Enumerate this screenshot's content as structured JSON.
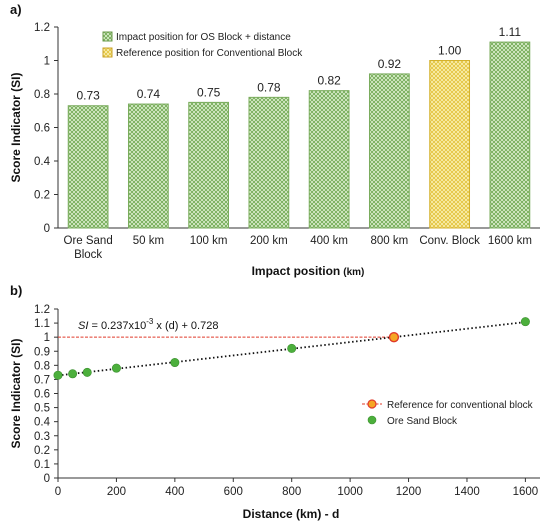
{
  "chart_data": [
    {
      "panel": "a)",
      "type": "bar",
      "categories": [
        "Ore Sand\nBlock",
        "50 km",
        "100 km",
        "200 km",
        "400 km",
        "800 km",
        "Conv. Block",
        "1600 km"
      ],
      "values": [
        0.73,
        0.74,
        0.75,
        0.78,
        0.82,
        0.92,
        1.0,
        1.11
      ],
      "value_labels": [
        "0.73",
        "0.74",
        "0.75",
        "0.78",
        "0.82",
        "0.92",
        "1.00",
        "1.11"
      ],
      "highlight_index": 6,
      "ylabel": "Score Indicator (SI)",
      "xlabel": "Impact position",
      "xlabel_unit": "(km)",
      "ylim": [
        0,
        1.2
      ],
      "yticks": [
        "0",
        "0.2",
        "0.4",
        "0.6",
        "0.8",
        "1",
        "1.2"
      ],
      "legend": [
        {
          "label": "Impact position for OS Block + distance",
          "color": "#c9e6b3",
          "stroke": "#6a9a4a"
        },
        {
          "label": "Reference position for Conventional Block",
          "color": "#f6e27a",
          "stroke": "#c9a227"
        }
      ],
      "legend_position": "top-left",
      "grid": false
    },
    {
      "panel": "b)",
      "type": "scatter",
      "series": [
        {
          "name": "Ore Sand Block",
          "x": [
            0,
            50,
            100,
            200,
            400,
            800,
            1600
          ],
          "y": [
            0.73,
            0.74,
            0.75,
            0.78,
            0.82,
            0.92,
            1.11
          ],
          "color": "#4caf3c"
        },
        {
          "name": "Reference for conventional block",
          "x": [
            1150
          ],
          "y": [
            1.0
          ],
          "color": "#f5a623",
          "stroke": "#e03a2a"
        }
      ],
      "trendline": {
        "slope": 0.000237,
        "intercept": 0.728,
        "x_range": [
          0,
          1600
        ]
      },
      "reference_line_y": 1.0,
      "equation_parts": {
        "var": "SI",
        "rest": " = 0.237x10",
        "exp": "-3",
        "tail": " x (d) + 0.728"
      },
      "xlabel": "Distance (km) - d",
      "ylabel": "Score Indicator (SI)",
      "xlim": [
        0,
        1650
      ],
      "ylim": [
        0,
        1.2
      ],
      "xticks": [
        "0",
        "200",
        "400",
        "600",
        "800",
        "1000",
        "1200",
        "1400",
        "1600"
      ],
      "yticks": [
        "0",
        "0.1",
        "0.2",
        "0.3",
        "0.4",
        "0.5",
        "0.6",
        "0.7",
        "0.8",
        "0.9",
        "1",
        "1.1",
        "1.2"
      ],
      "legend_position": "right",
      "grid": false
    }
  ]
}
